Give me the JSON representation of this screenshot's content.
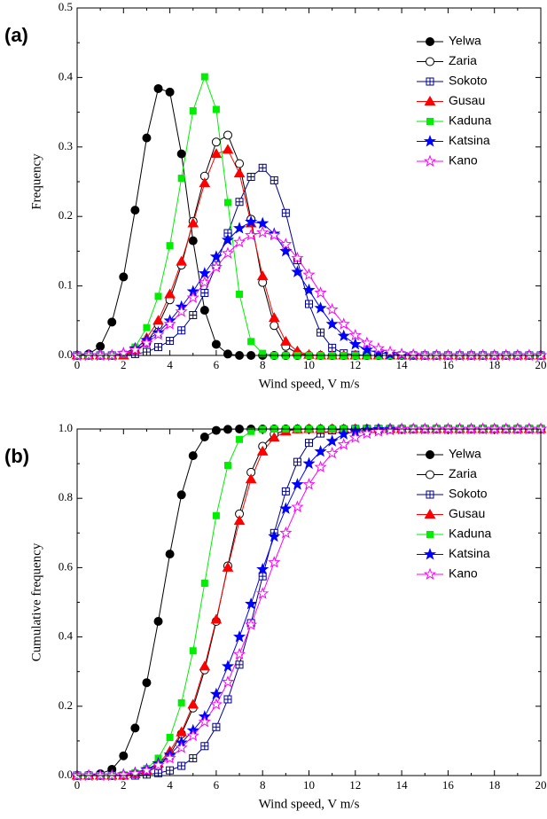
{
  "chart_data": [
    {
      "type": "line",
      "panel": "(a)",
      "xlabel": "Wind speed, V m/s",
      "ylabel": "Frequency",
      "x": [
        0,
        0.5,
        1,
        1.5,
        2,
        2.5,
        3,
        3.5,
        4,
        4.5,
        5,
        5.5,
        6,
        6.5,
        7,
        7.5,
        8,
        8.5,
        9,
        9.5,
        10,
        10.5,
        11,
        11.5,
        12,
        12.5,
        13,
        13.5,
        14,
        14.5,
        15,
        15.5,
        16,
        16.5,
        17,
        17.5,
        18,
        18.5,
        19,
        19.5,
        20
      ],
      "xlim": [
        0,
        20
      ],
      "xticks": [
        0,
        2,
        4,
        6,
        8,
        10,
        12,
        14,
        16,
        18,
        20
      ],
      "ylim": [
        0,
        0.5
      ],
      "yticks": [
        {
          "value": 0,
          "label": "0.0"
        },
        0.1,
        0.2,
        0.3,
        0.4,
        0.5
      ],
      "legend": "upper right",
      "series": [
        {
          "name": "Yelwa",
          "color": "#000000",
          "marker": "circle",
          "filled": true,
          "values": [
            0,
            0.002,
            0.013,
            0.048,
            0.113,
            0.209,
            0.313,
            0.384,
            0.379,
            0.29,
            0.165,
            0.065,
            0.016,
            0.002,
            0,
            0,
            0,
            0,
            0,
            0,
            0,
            0,
            0,
            0,
            0,
            0,
            0,
            0,
            0,
            0,
            0,
            0,
            0,
            0,
            0,
            0,
            0,
            0,
            0,
            0,
            0
          ]
        },
        {
          "name": "Zaria",
          "color": "#000000",
          "marker": "circle",
          "filled": false,
          "values": [
            0,
            0,
            0,
            0,
            0.001,
            0.005,
            0.018,
            0.044,
            0.08,
            0.13,
            0.193,
            0.258,
            0.307,
            0.317,
            0.276,
            0.196,
            0.105,
            0.043,
            0.013,
            0.003,
            0,
            0,
            0,
            0,
            0,
            0,
            0,
            0,
            0,
            0,
            0,
            0,
            0,
            0,
            0,
            0,
            0,
            0,
            0,
            0,
            0
          ]
        },
        {
          "name": "Sokoto",
          "color": "#00008b",
          "marker": "square-plus",
          "filled": false,
          "values": [
            0,
            0,
            0,
            0,
            0,
            0.002,
            0.005,
            0.012,
            0.021,
            0.036,
            0.058,
            0.09,
            0.13,
            0.176,
            0.221,
            0.257,
            0.27,
            0.252,
            0.205,
            0.137,
            0.074,
            0.033,
            0.011,
            0.003,
            0.001,
            0,
            0,
            0,
            0,
            0,
            0,
            0,
            0,
            0,
            0,
            0,
            0,
            0,
            0,
            0,
            0
          ]
        },
        {
          "name": "Gusau",
          "color": "#ff0000",
          "marker": "triangle",
          "filled": true,
          "values": [
            0,
            0,
            0,
            0,
            0,
            0.008,
            0.025,
            0.05,
            0.088,
            0.135,
            0.19,
            0.248,
            0.29,
            0.296,
            0.262,
            0.19,
            0.114,
            0.054,
            0.02,
            0.006,
            0.001,
            0,
            0,
            0,
            0,
            0,
            0,
            0,
            0,
            0,
            0,
            0,
            0,
            0,
            0,
            0,
            0,
            0,
            0,
            0,
            0
          ]
        },
        {
          "name": "Kaduna",
          "color": "#00ee00",
          "marker": "square",
          "filled": true,
          "values": [
            0,
            0,
            0,
            0,
            0.002,
            0.012,
            0.04,
            0.085,
            0.158,
            0.255,
            0.352,
            0.401,
            0.354,
            0.22,
            0.088,
            0.02,
            0.003,
            0,
            0,
            0,
            0,
            0,
            0,
            0,
            0,
            0,
            0,
            0,
            0,
            0,
            0,
            0,
            0,
            0,
            0,
            0,
            0,
            0,
            0,
            0,
            0
          ]
        },
        {
          "name": "Katsina",
          "color": "#0000ff",
          "marker": "star",
          "filled": true,
          "values": [
            0,
            0,
            0,
            0,
            0.003,
            0.01,
            0.022,
            0.033,
            0.05,
            0.07,
            0.092,
            0.118,
            0.142,
            0.166,
            0.183,
            0.192,
            0.19,
            0.175,
            0.15,
            0.12,
            0.094,
            0.068,
            0.045,
            0.028,
            0.016,
            0.008,
            0.004,
            0.002,
            0.001,
            0,
            0,
            0,
            0,
            0,
            0,
            0,
            0,
            0,
            0,
            0,
            0
          ]
        },
        {
          "name": "Kano",
          "color": "#ff00ff",
          "marker": "star",
          "filled": false,
          "values": [
            0,
            0,
            0,
            0,
            0.003,
            0.008,
            0.018,
            0.03,
            0.045,
            0.063,
            0.083,
            0.105,
            0.127,
            0.147,
            0.163,
            0.173,
            0.177,
            0.173,
            0.16,
            0.14,
            0.116,
            0.09,
            0.066,
            0.045,
            0.029,
            0.018,
            0.01,
            0.005,
            0.002,
            0.001,
            0,
            0,
            0,
            0,
            0,
            0,
            0,
            0,
            0,
            0,
            0
          ]
        }
      ]
    },
    {
      "type": "line",
      "panel": "(b)",
      "xlabel": "Wind speed, V m/s",
      "ylabel": "Cumulative frequency",
      "x": [
        0,
        0.5,
        1,
        1.5,
        2,
        2.5,
        3,
        3.5,
        4,
        4.5,
        5,
        5.5,
        6,
        6.5,
        7,
        7.5,
        8,
        8.5,
        9,
        9.5,
        10,
        10.5,
        11,
        11.5,
        12,
        12.5,
        13,
        13.5,
        14,
        14.5,
        15,
        15.5,
        16,
        16.5,
        17,
        17.5,
        18,
        18.5,
        19,
        19.5,
        20
      ],
      "xlim": [
        0,
        20
      ],
      "xticks": [
        0,
        2,
        4,
        6,
        8,
        10,
        12,
        14,
        16,
        18,
        20
      ],
      "ylim": [
        0,
        1
      ],
      "yticks": [
        {
          "value": 0,
          "label": "0.0"
        },
        0.2,
        0.4,
        0.6,
        0.8,
        {
          "value": 1,
          "label": "1.0"
        }
      ],
      "legend": "upper right",
      "series": [
        {
          "name": "Yelwa",
          "color": "#000000",
          "marker": "circle",
          "filled": true,
          "values": [
            0,
            0.001,
            0.005,
            0.018,
            0.057,
            0.137,
            0.268,
            0.445,
            0.639,
            0.81,
            0.923,
            0.977,
            0.996,
            0.999,
            1,
            1,
            1,
            1,
            1,
            1,
            1,
            1,
            1,
            1,
            1,
            1,
            1,
            1,
            1,
            1,
            1,
            1,
            1,
            1,
            1,
            1,
            1,
            1,
            1,
            1,
            1
          ]
        },
        {
          "name": "Zaria",
          "color": "#000000",
          "marker": "circle",
          "filled": false,
          "values": [
            0,
            0,
            0,
            0,
            0,
            0.002,
            0.01,
            0.027,
            0.06,
            0.12,
            0.195,
            0.305,
            0.445,
            0.605,
            0.755,
            0.875,
            0.95,
            0.985,
            0.996,
            1,
            1,
            1,
            1,
            1,
            1,
            1,
            1,
            1,
            1,
            1,
            1,
            1,
            1,
            1,
            1,
            1,
            1,
            1,
            1,
            1,
            1
          ]
        },
        {
          "name": "Sokoto",
          "color": "#00008b",
          "marker": "square-plus",
          "filled": false,
          "values": [
            0,
            0,
            0,
            0,
            0,
            0,
            0.003,
            0.007,
            0.015,
            0.028,
            0.05,
            0.085,
            0.14,
            0.22,
            0.32,
            0.44,
            0.575,
            0.7,
            0.82,
            0.905,
            0.96,
            0.987,
            0.996,
            0.999,
            1,
            1,
            1,
            1,
            1,
            1,
            1,
            1,
            1,
            1,
            1,
            1,
            1,
            1,
            1,
            1,
            1
          ]
        },
        {
          "name": "Gusau",
          "color": "#ff0000",
          "marker": "triangle",
          "filled": true,
          "values": [
            0,
            0,
            0,
            0,
            0,
            0.004,
            0.015,
            0.035,
            0.07,
            0.125,
            0.205,
            0.315,
            0.45,
            0.6,
            0.735,
            0.855,
            0.935,
            0.975,
            0.993,
            0.999,
            1,
            1,
            1,
            1,
            1,
            1,
            1,
            1,
            1,
            1,
            1,
            1,
            1,
            1,
            1,
            1,
            1,
            1,
            1,
            1,
            1
          ]
        },
        {
          "name": "Kaduna",
          "color": "#00ee00",
          "marker": "square",
          "filled": true,
          "values": [
            0,
            0,
            0,
            0,
            0.002,
            0.008,
            0.02,
            0.05,
            0.11,
            0.21,
            0.36,
            0.555,
            0.75,
            0.895,
            0.97,
            0.993,
            0.999,
            1,
            1,
            1,
            1,
            1,
            1,
            1,
            1,
            1,
            1,
            1,
            1,
            1,
            1,
            1,
            1,
            1,
            1,
            1,
            1,
            1,
            1,
            1,
            1
          ]
        },
        {
          "name": "Katsina",
          "color": "#0000ff",
          "marker": "star",
          "filled": true,
          "values": [
            0,
            0,
            0,
            0,
            0.003,
            0.008,
            0.018,
            0.035,
            0.06,
            0.095,
            0.13,
            0.17,
            0.235,
            0.315,
            0.4,
            0.495,
            0.595,
            0.69,
            0.77,
            0.84,
            0.9,
            0.935,
            0.965,
            0.985,
            0.993,
            0.997,
            0.999,
            1,
            1,
            1,
            1,
            1,
            1,
            1,
            1,
            1,
            1,
            1,
            1,
            1,
            1
          ]
        },
        {
          "name": "Kano",
          "color": "#ff00ff",
          "marker": "star",
          "filled": false,
          "values": [
            0,
            0,
            0,
            0,
            0.002,
            0.006,
            0.015,
            0.03,
            0.05,
            0.08,
            0.115,
            0.155,
            0.205,
            0.27,
            0.35,
            0.435,
            0.525,
            0.615,
            0.7,
            0.775,
            0.84,
            0.89,
            0.93,
            0.955,
            0.975,
            0.987,
            0.993,
            0.997,
            0.999,
            1,
            1,
            1,
            1,
            1,
            1,
            1,
            1,
            1,
            1,
            1,
            1
          ]
        }
      ]
    }
  ]
}
